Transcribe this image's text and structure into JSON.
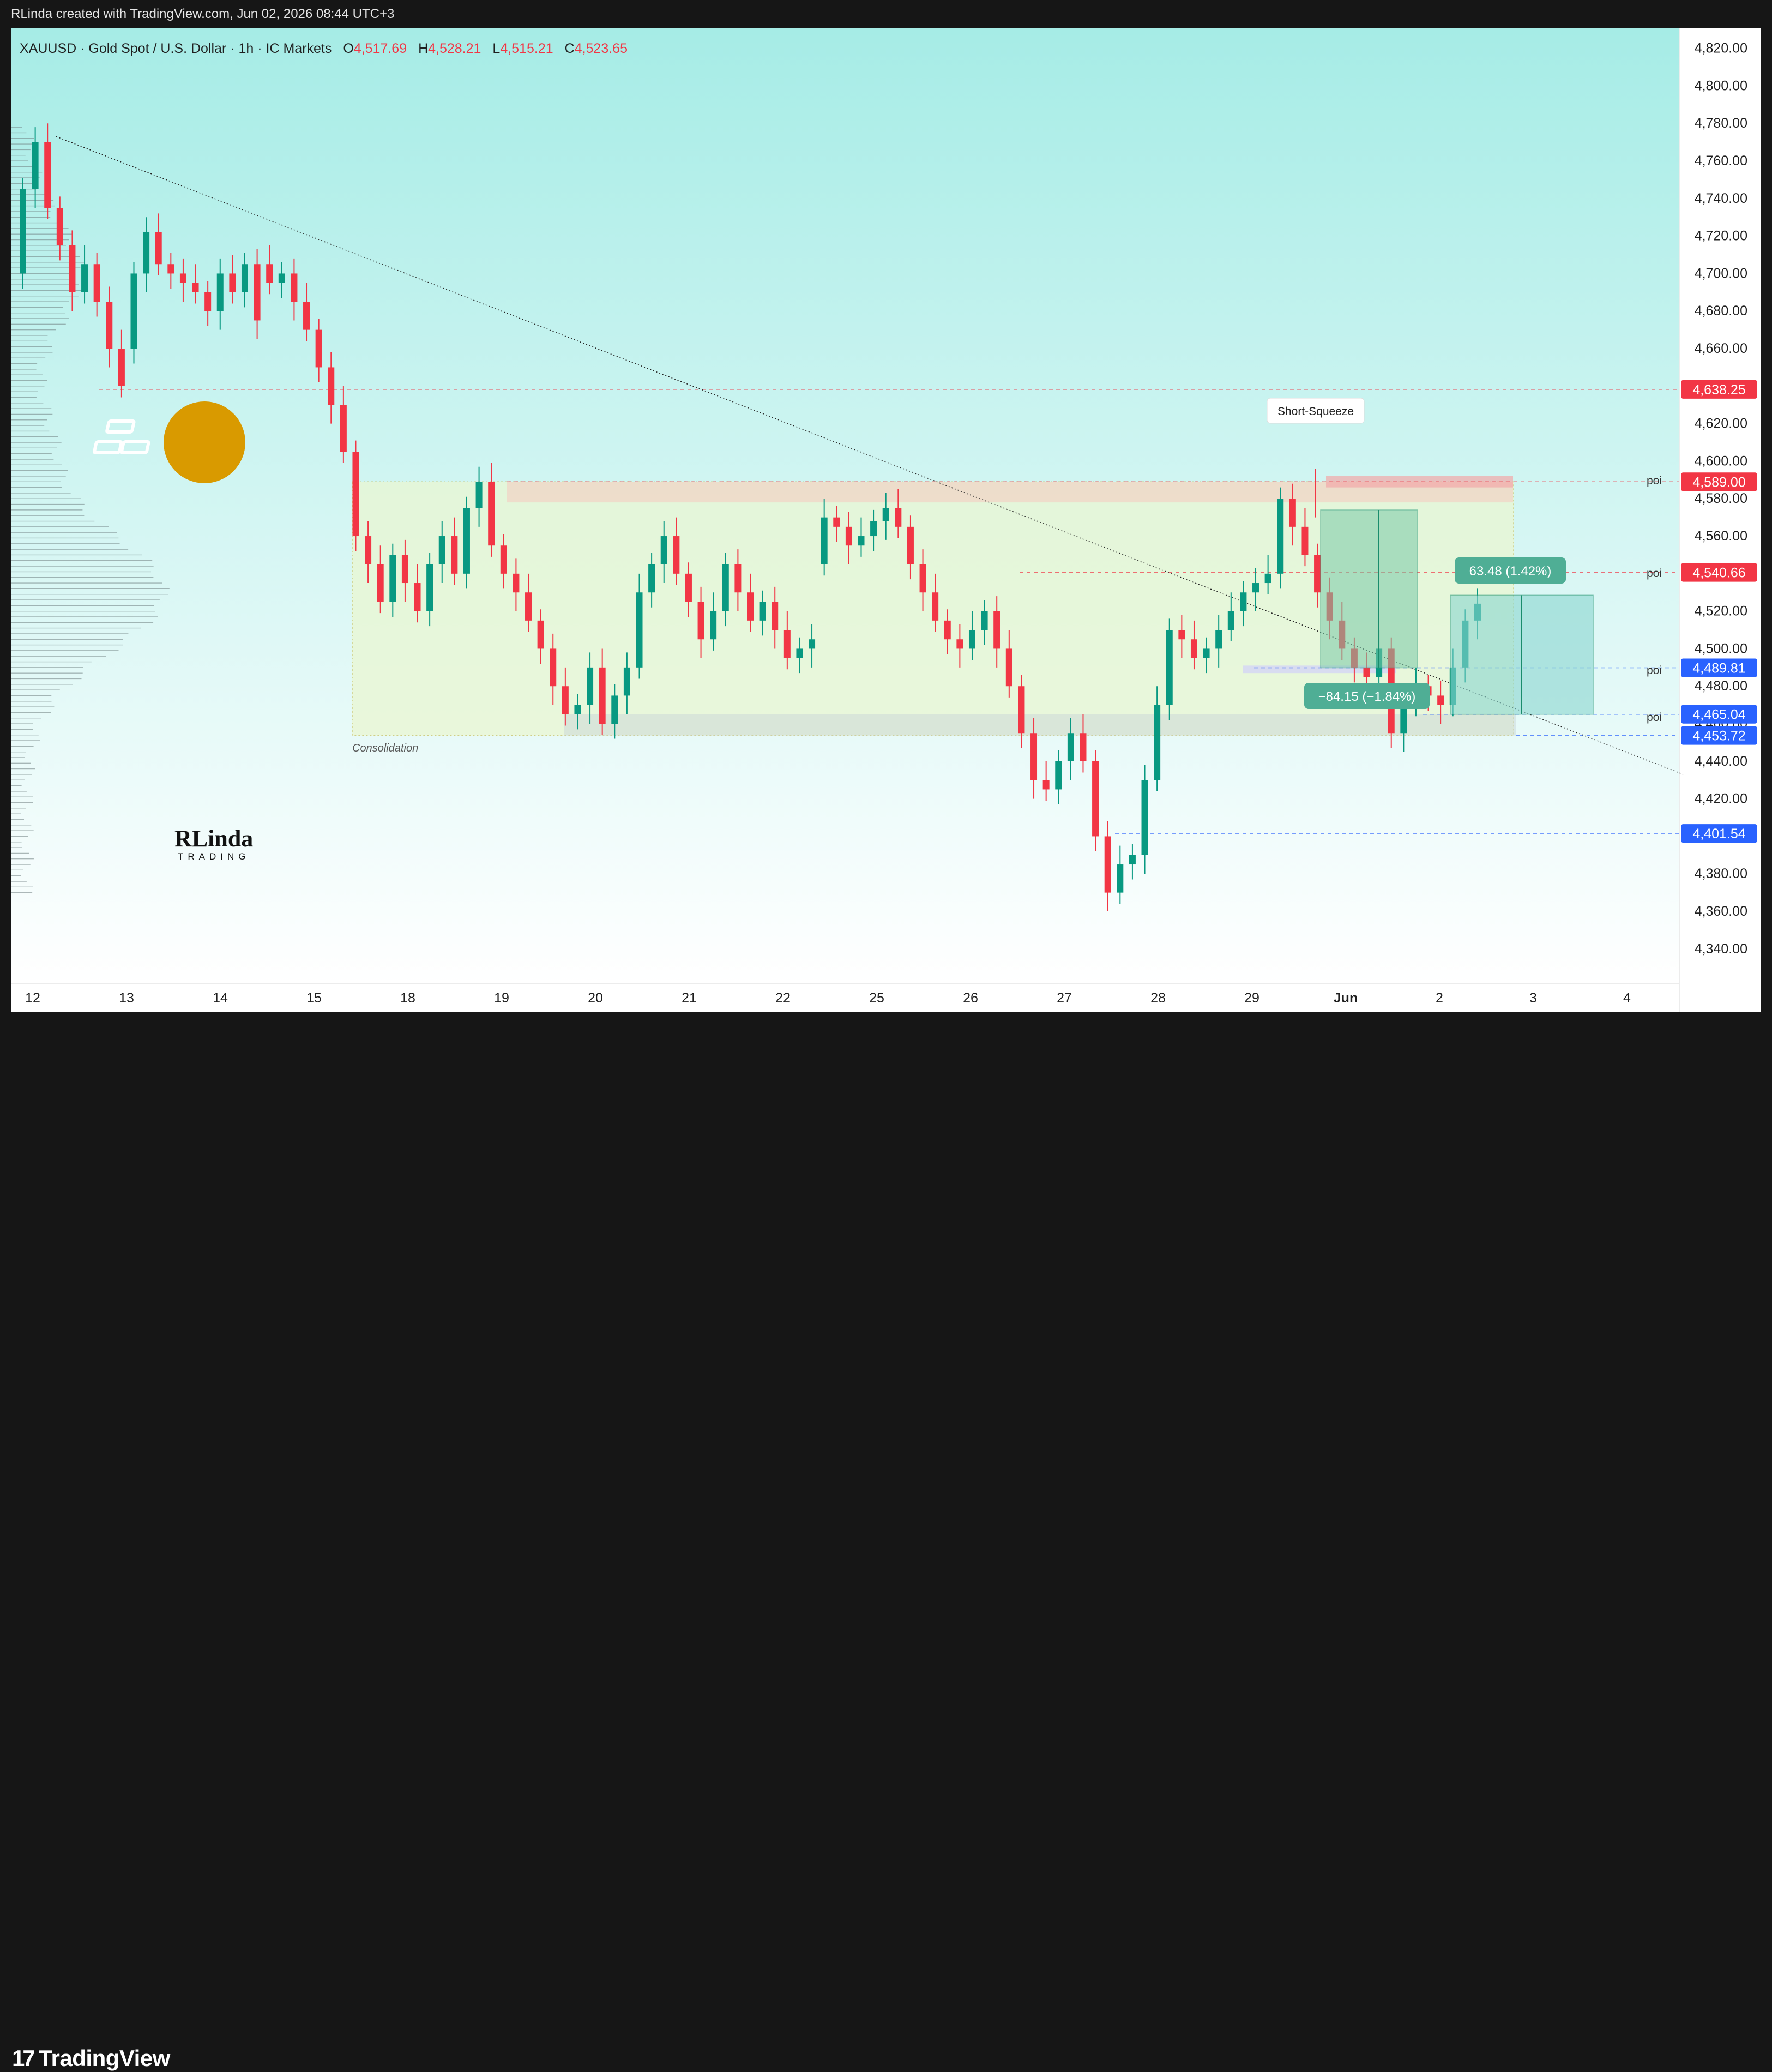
{
  "header": {
    "credit": "RLinda created with TradingView.com, Jun 02, 2026 08:44 UTC+3"
  },
  "footer": {
    "brand": "TradingView",
    "logo_mark": "17"
  },
  "legend": {
    "symbol": "XAUUSD · Gold Spot / U.S. Dollar · 1h · IC Markets",
    "open_label": "O",
    "open": "4,517.69",
    "high_label": "H",
    "high": "4,528.21",
    "low_label": "L",
    "low": "4,515.21",
    "close_label": "C",
    "close": "4,523.65"
  },
  "colors": {
    "up": "#089981",
    "down": "#f23645",
    "level_red": "#f23645",
    "level_blue": "#2962ff",
    "bg_top": "#a6ece6",
    "bg_bottom": "#ffffff",
    "gold_badge": "#d99a00",
    "consolidation": "#eaf7d2",
    "supply_zone": "#f5c9c0",
    "long_box": "#79c9a8",
    "target_box": "#8ad6d0",
    "stop_box": "#d6d8f2"
  },
  "annotations": {
    "consolidation": "Consolidation",
    "short_squeeze": "Short-Squeeze",
    "long_label": "63.48 (1.42%)",
    "short_label": "−84.15 (−1.84%)",
    "poi": "poi",
    "watermark_main": "RLinda",
    "watermark_sub": "TRADING",
    "gold_icon": "gold-bars-icon"
  },
  "chart_data": {
    "type": "candlestick",
    "title": "XAUUSD · Gold Spot / U.S. Dollar · 1h · IC Markets",
    "ylim": [
      4326,
      4826
    ],
    "yticks": [
      "4,820.00",
      "4,800.00",
      "4,780.00",
      "4,760.00",
      "4,740.00",
      "4,720.00",
      "4,700.00",
      "4,680.00",
      "4,660.00",
      "4,640.00",
      "4,620.00",
      "4,600.00",
      "4,580.00",
      "4,560.00",
      "4,540.00",
      "4,520.00",
      "4,500.00",
      "4,480.00",
      "4,460.00",
      "4,440.00",
      "4,420.00",
      "4,400.00",
      "4,380.00",
      "4,360.00",
      "4,340.00"
    ],
    "ytick_values": [
      4820,
      4800,
      4780,
      4760,
      4740,
      4720,
      4700,
      4680,
      4660,
      4640,
      4620,
      4600,
      4580,
      4560,
      4540,
      4520,
      4500,
      4480,
      4460,
      4440,
      4420,
      4400,
      4380,
      4360,
      4340
    ],
    "x_labels": [
      "12",
      "13",
      "14",
      "15",
      "18",
      "19",
      "20",
      "21",
      "22",
      "25",
      "26",
      "27",
      "28",
      "29",
      "Jun",
      "2",
      "3",
      "4"
    ],
    "levels": [
      {
        "value": 4638.25,
        "label": "4,638.25",
        "color": "red"
      },
      {
        "value": 4589.0,
        "label": "4,589.00",
        "color": "red"
      },
      {
        "value": 4540.66,
        "label": "4,540.66",
        "color": "red"
      },
      {
        "value": 4489.81,
        "label": "4,489.81",
        "color": "blue"
      },
      {
        "value": 4465.04,
        "label": "4,465.04",
        "color": "blue"
      },
      {
        "value": 4453.72,
        "label": "4,453.72",
        "color": "blue"
      },
      {
        "value": 4401.54,
        "label": "4,401.54",
        "color": "blue"
      }
    ],
    "consolidation_range": [
      4453.72,
      4589.0
    ],
    "short_squeeze_high": 4596,
    "long_position": {
      "entry": 4465.04,
      "target": 4528.52,
      "change": "63.48 (1.42%)"
    },
    "short_position": {
      "entry": 4573.96,
      "target": 4489.81,
      "change": "−84.15 (−1.84%)"
    },
    "trendline": {
      "start": [
        0.25,
        4773
      ],
      "end": [
        17.6,
        4433
      ]
    },
    "candles_ohlc_sampled": [
      [
        4700,
        4745
      ],
      [
        4745,
        4770
      ],
      [
        4770,
        4735
      ],
      [
        4735,
        4715
      ],
      [
        4715,
        4690
      ],
      [
        4690,
        4705
      ],
      [
        4705,
        4685
      ],
      [
        4685,
        4660
      ],
      [
        4660,
        4640
      ],
      [
        4660,
        4700
      ],
      [
        4700,
        4722
      ],
      [
        4722,
        4705
      ],
      [
        4705,
        4700
      ],
      [
        4700,
        4695
      ],
      [
        4695,
        4690
      ],
      [
        4690,
        4680
      ],
      [
        4680,
        4700
      ],
      [
        4700,
        4690
      ],
      [
        4690,
        4705
      ],
      [
        4705,
        4675
      ],
      [
        4705,
        4695
      ],
      [
        4695,
        4700
      ],
      [
        4700,
        4685
      ],
      [
        4685,
        4670
      ],
      [
        4670,
        4650
      ],
      [
        4650,
        4630
      ],
      [
        4630,
        4605
      ],
      [
        4605,
        4560
      ],
      [
        4560,
        4545
      ],
      [
        4545,
        4525
      ],
      [
        4525,
        4550
      ],
      [
        4550,
        4535
      ],
      [
        4535,
        4520
      ],
      [
        4520,
        4545
      ],
      [
        4545,
        4560
      ],
      [
        4560,
        4540
      ],
      [
        4540,
        4575
      ],
      [
        4575,
        4589
      ],
      [
        4589,
        4555
      ],
      [
        4555,
        4540
      ],
      [
        4540,
        4530
      ],
      [
        4530,
        4515
      ],
      [
        4515,
        4500
      ],
      [
        4500,
        4480
      ],
      [
        4480,
        4465
      ],
      [
        4465,
        4470
      ],
      [
        4470,
        4490
      ],
      [
        4490,
        4460
      ],
      [
        4460,
        4475
      ],
      [
        4475,
        4490
      ],
      [
        4490,
        4530
      ],
      [
        4530,
        4545
      ],
      [
        4545,
        4560
      ],
      [
        4560,
        4540
      ],
      [
        4540,
        4525
      ],
      [
        4525,
        4505
      ],
      [
        4505,
        4520
      ],
      [
        4520,
        4545
      ],
      [
        4545,
        4530
      ],
      [
        4530,
        4515
      ],
      [
        4515,
        4525
      ],
      [
        4525,
        4510
      ],
      [
        4510,
        4495
      ],
      [
        4495,
        4500
      ],
      [
        4500,
        4505
      ],
      [
        4545,
        4570
      ],
      [
        4570,
        4565
      ],
      [
        4565,
        4555
      ],
      [
        4555,
        4560
      ],
      [
        4560,
        4568
      ],
      [
        4568,
        4575
      ],
      [
        4575,
        4565
      ],
      [
        4565,
        4545
      ],
      [
        4545,
        4530
      ],
      [
        4530,
        4515
      ],
      [
        4515,
        4505
      ],
      [
        4505,
        4500
      ],
      [
        4500,
        4510
      ],
      [
        4510,
        4520
      ],
      [
        4520,
        4500
      ],
      [
        4500,
        4480
      ],
      [
        4480,
        4455
      ],
      [
        4455,
        4430
      ],
      [
        4430,
        4425
      ],
      [
        4425,
        4440
      ],
      [
        4440,
        4455
      ],
      [
        4455,
        4440
      ],
      [
        4440,
        4400
      ],
      [
        4400,
        4370
      ],
      [
        4370,
        4385
      ],
      [
        4385,
        4390
      ],
      [
        4390,
        4430
      ],
      [
        4430,
        4470
      ],
      [
        4470,
        4510
      ],
      [
        4510,
        4505
      ],
      [
        4505,
        4495
      ],
      [
        4495,
        4500
      ],
      [
        4500,
        4510
      ],
      [
        4510,
        4520
      ],
      [
        4520,
        4530
      ],
      [
        4530,
        4535
      ],
      [
        4535,
        4540
      ],
      [
        4540,
        4580
      ],
      [
        4580,
        4565
      ],
      [
        4565,
        4550
      ],
      [
        4550,
        4530
      ],
      [
        4530,
        4515
      ],
      [
        4515,
        4500
      ],
      [
        4500,
        4490
      ],
      [
        4490,
        4485
      ],
      [
        4485,
        4500
      ],
      [
        4500,
        4455
      ],
      [
        4455,
        4470
      ],
      [
        4470,
        4480
      ],
      [
        4480,
        4475
      ],
      [
        4475,
        4470
      ],
      [
        4470,
        4490
      ],
      [
        4490,
        4515
      ],
      [
        4515,
        4524
      ]
    ]
  }
}
